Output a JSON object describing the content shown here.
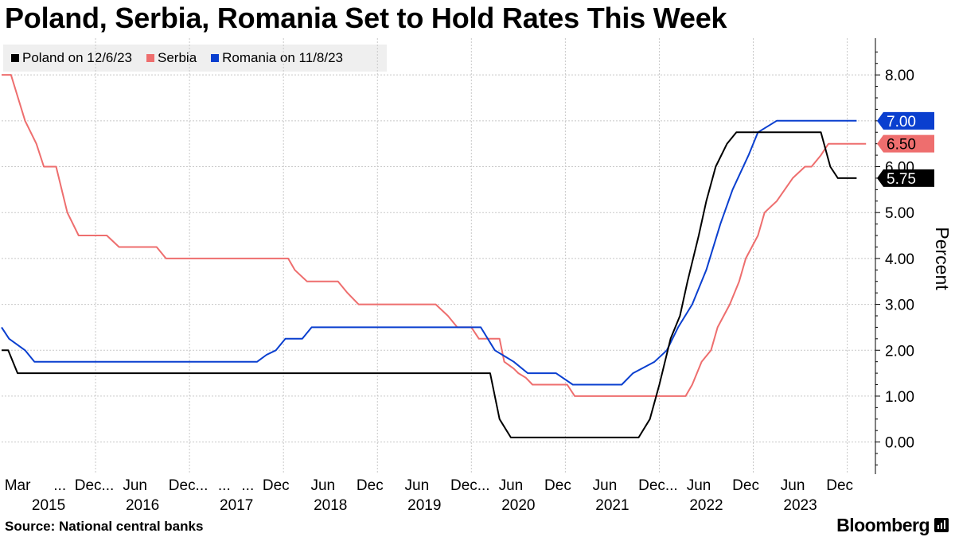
{
  "title": "Poland, Serbia, Romania Set to Hold Rates This Week",
  "source": "Source:  National central banks",
  "brand": "Bloomberg",
  "brand_icon": "bloomberg-terminal-icon",
  "colors": {
    "poland": "#000000",
    "serbia": "#ee6e6e",
    "romania": "#0a3fcf"
  },
  "chart_data": {
    "type": "line",
    "title": "Poland, Serbia, Romania Set to Hold Rates This Week",
    "ylabel": "Percent",
    "xlabel": "",
    "ylim": [
      -0.7,
      8.8
    ],
    "xlim": [
      2015.0,
      2024.3
    ],
    "grid": true,
    "legend_position": "top-left",
    "y_ticks": [
      0,
      1,
      2,
      3,
      4,
      5,
      6,
      7,
      8
    ],
    "y_tick_labels": [
      "0.00",
      "1.00",
      "2.00",
      "3.00",
      "4.00",
      "5.00",
      "6.00",
      "7.00",
      "8.00"
    ],
    "x_tick_labels": [
      {
        "x": 2015.17,
        "label": "Mar"
      },
      {
        "x": 2015.62,
        "label": "..."
      },
      {
        "x": 2015.92,
        "label": "Dec"
      },
      {
        "x": 2016.13,
        "label": "..."
      },
      {
        "x": 2016.42,
        "label": "Jun"
      },
      {
        "x": 2016.92,
        "label": "Dec"
      },
      {
        "x": 2017.13,
        "label": "..."
      },
      {
        "x": 2017.37,
        "label": "..."
      },
      {
        "x": 2017.62,
        "label": "..."
      },
      {
        "x": 2017.92,
        "label": "Dec"
      },
      {
        "x": 2018.42,
        "label": "Jun"
      },
      {
        "x": 2018.92,
        "label": "Dec"
      },
      {
        "x": 2019.42,
        "label": "Jun"
      },
      {
        "x": 2019.92,
        "label": "Dec"
      },
      {
        "x": 2020.13,
        "label": "..."
      },
      {
        "x": 2020.42,
        "label": "Jun"
      },
      {
        "x": 2020.92,
        "label": "Dec"
      },
      {
        "x": 2021.42,
        "label": "Jun"
      },
      {
        "x": 2021.92,
        "label": "Dec"
      },
      {
        "x": 2022.13,
        "label": "..."
      },
      {
        "x": 2022.42,
        "label": "Jun"
      },
      {
        "x": 2022.92,
        "label": "Dec"
      },
      {
        "x": 2023.42,
        "label": "Jun"
      },
      {
        "x": 2023.92,
        "label": "Dec"
      }
    ],
    "year_labels": [
      {
        "x": 2015.5,
        "label": "2015"
      },
      {
        "x": 2016.5,
        "label": "2016"
      },
      {
        "x": 2017.5,
        "label": "2017"
      },
      {
        "x": 2018.5,
        "label": "2018"
      },
      {
        "x": 2019.5,
        "label": "2019"
      },
      {
        "x": 2020.5,
        "label": "2020"
      },
      {
        "x": 2021.5,
        "label": "2021"
      },
      {
        "x": 2022.5,
        "label": "2022"
      },
      {
        "x": 2023.5,
        "label": "2023"
      }
    ],
    "series": [
      {
        "name": "Poland on 12/6/23",
        "key": "poland",
        "last_value_label": "5.75",
        "points": [
          [
            2015.0,
            2.0
          ],
          [
            2015.07,
            2.0
          ],
          [
            2015.17,
            1.5
          ],
          [
            2020.2,
            1.5
          ],
          [
            2020.3,
            0.5
          ],
          [
            2020.42,
            0.1
          ],
          [
            2021.78,
            0.1
          ],
          [
            2021.9,
            0.5
          ],
          [
            2022.0,
            1.25
          ],
          [
            2022.12,
            2.25
          ],
          [
            2022.22,
            2.75
          ],
          [
            2022.3,
            3.5
          ],
          [
            2022.42,
            4.5
          ],
          [
            2022.5,
            5.25
          ],
          [
            2022.6,
            6.0
          ],
          [
            2022.72,
            6.5
          ],
          [
            2022.82,
            6.75
          ],
          [
            2023.72,
            6.75
          ],
          [
            2023.82,
            6.0
          ],
          [
            2023.9,
            5.75
          ],
          [
            2024.1,
            5.75
          ]
        ]
      },
      {
        "name": "Serbia",
        "key": "serbia",
        "last_value_label": "6.50",
        "points": [
          [
            2015.0,
            8.0
          ],
          [
            2015.1,
            8.0
          ],
          [
            2015.25,
            7.0
          ],
          [
            2015.37,
            6.5
          ],
          [
            2015.45,
            6.0
          ],
          [
            2015.58,
            6.0
          ],
          [
            2015.7,
            5.0
          ],
          [
            2015.82,
            4.5
          ],
          [
            2016.12,
            4.5
          ],
          [
            2016.25,
            4.25
          ],
          [
            2016.65,
            4.25
          ],
          [
            2016.75,
            4.0
          ],
          [
            2018.05,
            4.0
          ],
          [
            2018.12,
            3.75
          ],
          [
            2018.25,
            3.5
          ],
          [
            2018.58,
            3.5
          ],
          [
            2018.68,
            3.25
          ],
          [
            2018.8,
            3.0
          ],
          [
            2019.62,
            3.0
          ],
          [
            2019.75,
            2.75
          ],
          [
            2019.85,
            2.5
          ],
          [
            2020.0,
            2.5
          ],
          [
            2020.08,
            2.25
          ],
          [
            2020.3,
            2.25
          ],
          [
            2020.35,
            1.75
          ],
          [
            2020.45,
            1.6
          ],
          [
            2020.5,
            1.5
          ],
          [
            2020.58,
            1.4
          ],
          [
            2020.65,
            1.25
          ],
          [
            2021.02,
            1.25
          ],
          [
            2021.1,
            1.0
          ],
          [
            2022.28,
            1.0
          ],
          [
            2022.35,
            1.25
          ],
          [
            2022.45,
            1.75
          ],
          [
            2022.55,
            2.0
          ],
          [
            2022.62,
            2.5
          ],
          [
            2022.75,
            3.0
          ],
          [
            2022.85,
            3.5
          ],
          [
            2022.92,
            4.0
          ],
          [
            2023.05,
            4.5
          ],
          [
            2023.12,
            5.0
          ],
          [
            2023.25,
            5.25
          ],
          [
            2023.42,
            5.75
          ],
          [
            2023.55,
            6.0
          ],
          [
            2023.62,
            6.0
          ],
          [
            2023.72,
            6.25
          ],
          [
            2023.8,
            6.5
          ],
          [
            2024.2,
            6.5
          ]
        ]
      },
      {
        "name": "Romania on 11/8/23",
        "key": "romania",
        "last_value_label": "7.00",
        "points": [
          [
            2015.0,
            2.5
          ],
          [
            2015.08,
            2.25
          ],
          [
            2015.25,
            2.0
          ],
          [
            2015.35,
            1.75
          ],
          [
            2017.72,
            1.75
          ],
          [
            2017.82,
            1.9
          ],
          [
            2017.92,
            2.0
          ],
          [
            2018.02,
            2.25
          ],
          [
            2018.2,
            2.25
          ],
          [
            2018.3,
            2.5
          ],
          [
            2020.1,
            2.5
          ],
          [
            2020.25,
            2.0
          ],
          [
            2020.45,
            1.75
          ],
          [
            2020.6,
            1.5
          ],
          [
            2020.9,
            1.5
          ],
          [
            2021.08,
            1.25
          ],
          [
            2021.6,
            1.25
          ],
          [
            2021.72,
            1.5
          ],
          [
            2021.95,
            1.75
          ],
          [
            2022.08,
            2.0
          ],
          [
            2022.2,
            2.5
          ],
          [
            2022.35,
            3.0
          ],
          [
            2022.5,
            3.75
          ],
          [
            2022.65,
            4.75
          ],
          [
            2022.78,
            5.5
          ],
          [
            2022.95,
            6.25
          ],
          [
            2023.05,
            6.75
          ],
          [
            2023.25,
            7.0
          ],
          [
            2024.1,
            7.0
          ]
        ]
      }
    ]
  }
}
